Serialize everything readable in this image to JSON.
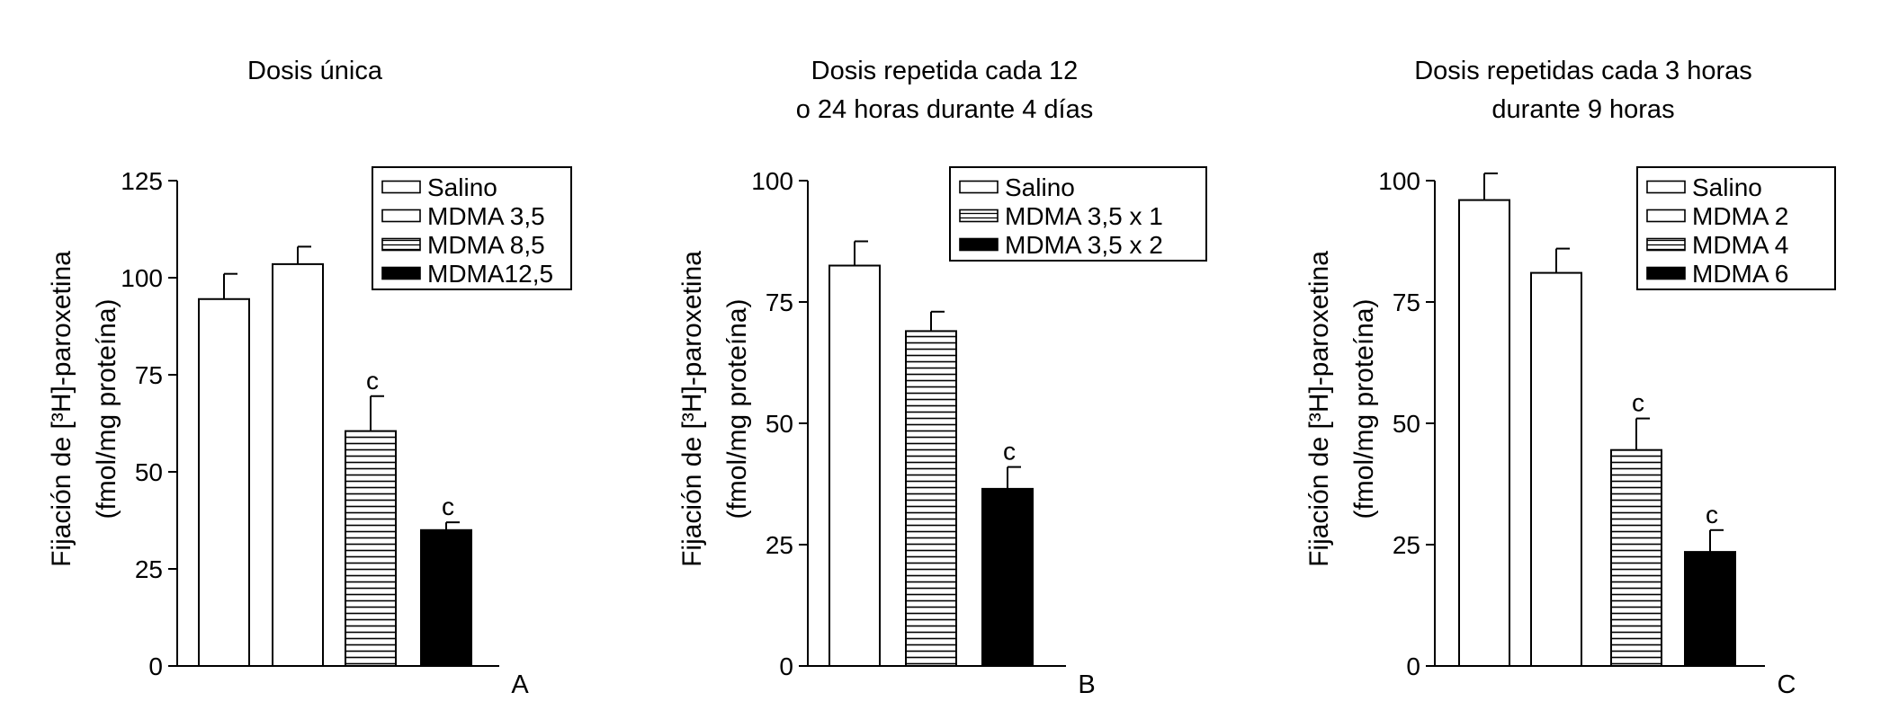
{
  "chart_data": [
    {
      "type": "bar",
      "panel_letter": "A",
      "title_lines": [
        "Dosis única"
      ],
      "ylabel_lines": [
        "Fijación de [³H]-paroxetina",
        "(fmol/mg proteína)"
      ],
      "ylim": [
        0,
        125
      ],
      "yticks": [
        0,
        25,
        50,
        75,
        100,
        125
      ],
      "grid": false,
      "legend_position": "top-right",
      "legend": [
        "Salino",
        "MDMA 3,5",
        "MDMA 8,5",
        "MDMA12,5"
      ],
      "categories": [
        "Salino",
        "MDMA 3,5",
        "MDMA 8,5",
        "MDMA12,5"
      ],
      "values": [
        94.5,
        103.5,
        60.5,
        35
      ],
      "errors": [
        6.5,
        4.5,
        9,
        2
      ],
      "fills": [
        "white",
        "white",
        "hatch",
        "black"
      ],
      "significance": [
        "",
        "",
        "c",
        "c"
      ]
    },
    {
      "type": "bar",
      "panel_letter": "B",
      "title_lines": [
        "Dosis repetida cada 12",
        "o 24 horas durante 4 días"
      ],
      "ylabel_lines": [
        "Fijación de [³H]-paroxetina",
        "(fmol/mg proteína)"
      ],
      "ylim": [
        0,
        100
      ],
      "yticks": [
        0,
        25,
        50,
        75,
        100
      ],
      "grid": false,
      "legend_position": "top-right",
      "legend": [
        "Salino",
        "MDMA 3,5 x 1",
        "MDMA 3,5 x 2"
      ],
      "categories": [
        "Salino",
        "MDMA 3,5 x 1",
        "MDMA 3,5 x 2"
      ],
      "values": [
        82.5,
        69,
        36.5
      ],
      "errors": [
        5,
        4,
        4.5
      ],
      "fills": [
        "white",
        "hatch",
        "black"
      ],
      "significance": [
        "",
        "",
        "c"
      ]
    },
    {
      "type": "bar",
      "panel_letter": "C",
      "title_lines": [
        "Dosis repetidas cada 3 horas",
        "durante 9 horas"
      ],
      "ylabel_lines": [
        "Fijación de [³H]-paroxetina",
        "(fmol/mg proteína)"
      ],
      "ylim": [
        0,
        100
      ],
      "yticks": [
        0,
        25,
        50,
        75,
        100
      ],
      "grid": false,
      "legend_position": "top-right",
      "legend": [
        "Salino",
        "MDMA 2",
        "MDMA 4",
        "MDMA 6"
      ],
      "categories": [
        "Salino",
        "MDMA 2",
        "MDMA 4",
        "MDMA 6"
      ],
      "values": [
        96,
        81,
        44.5,
        23.5
      ],
      "errors": [
        5.5,
        5,
        6.5,
        4.5
      ],
      "fills": [
        "white",
        "white",
        "hatch",
        "black"
      ],
      "significance": [
        "",
        "",
        "c",
        "c"
      ]
    }
  ]
}
